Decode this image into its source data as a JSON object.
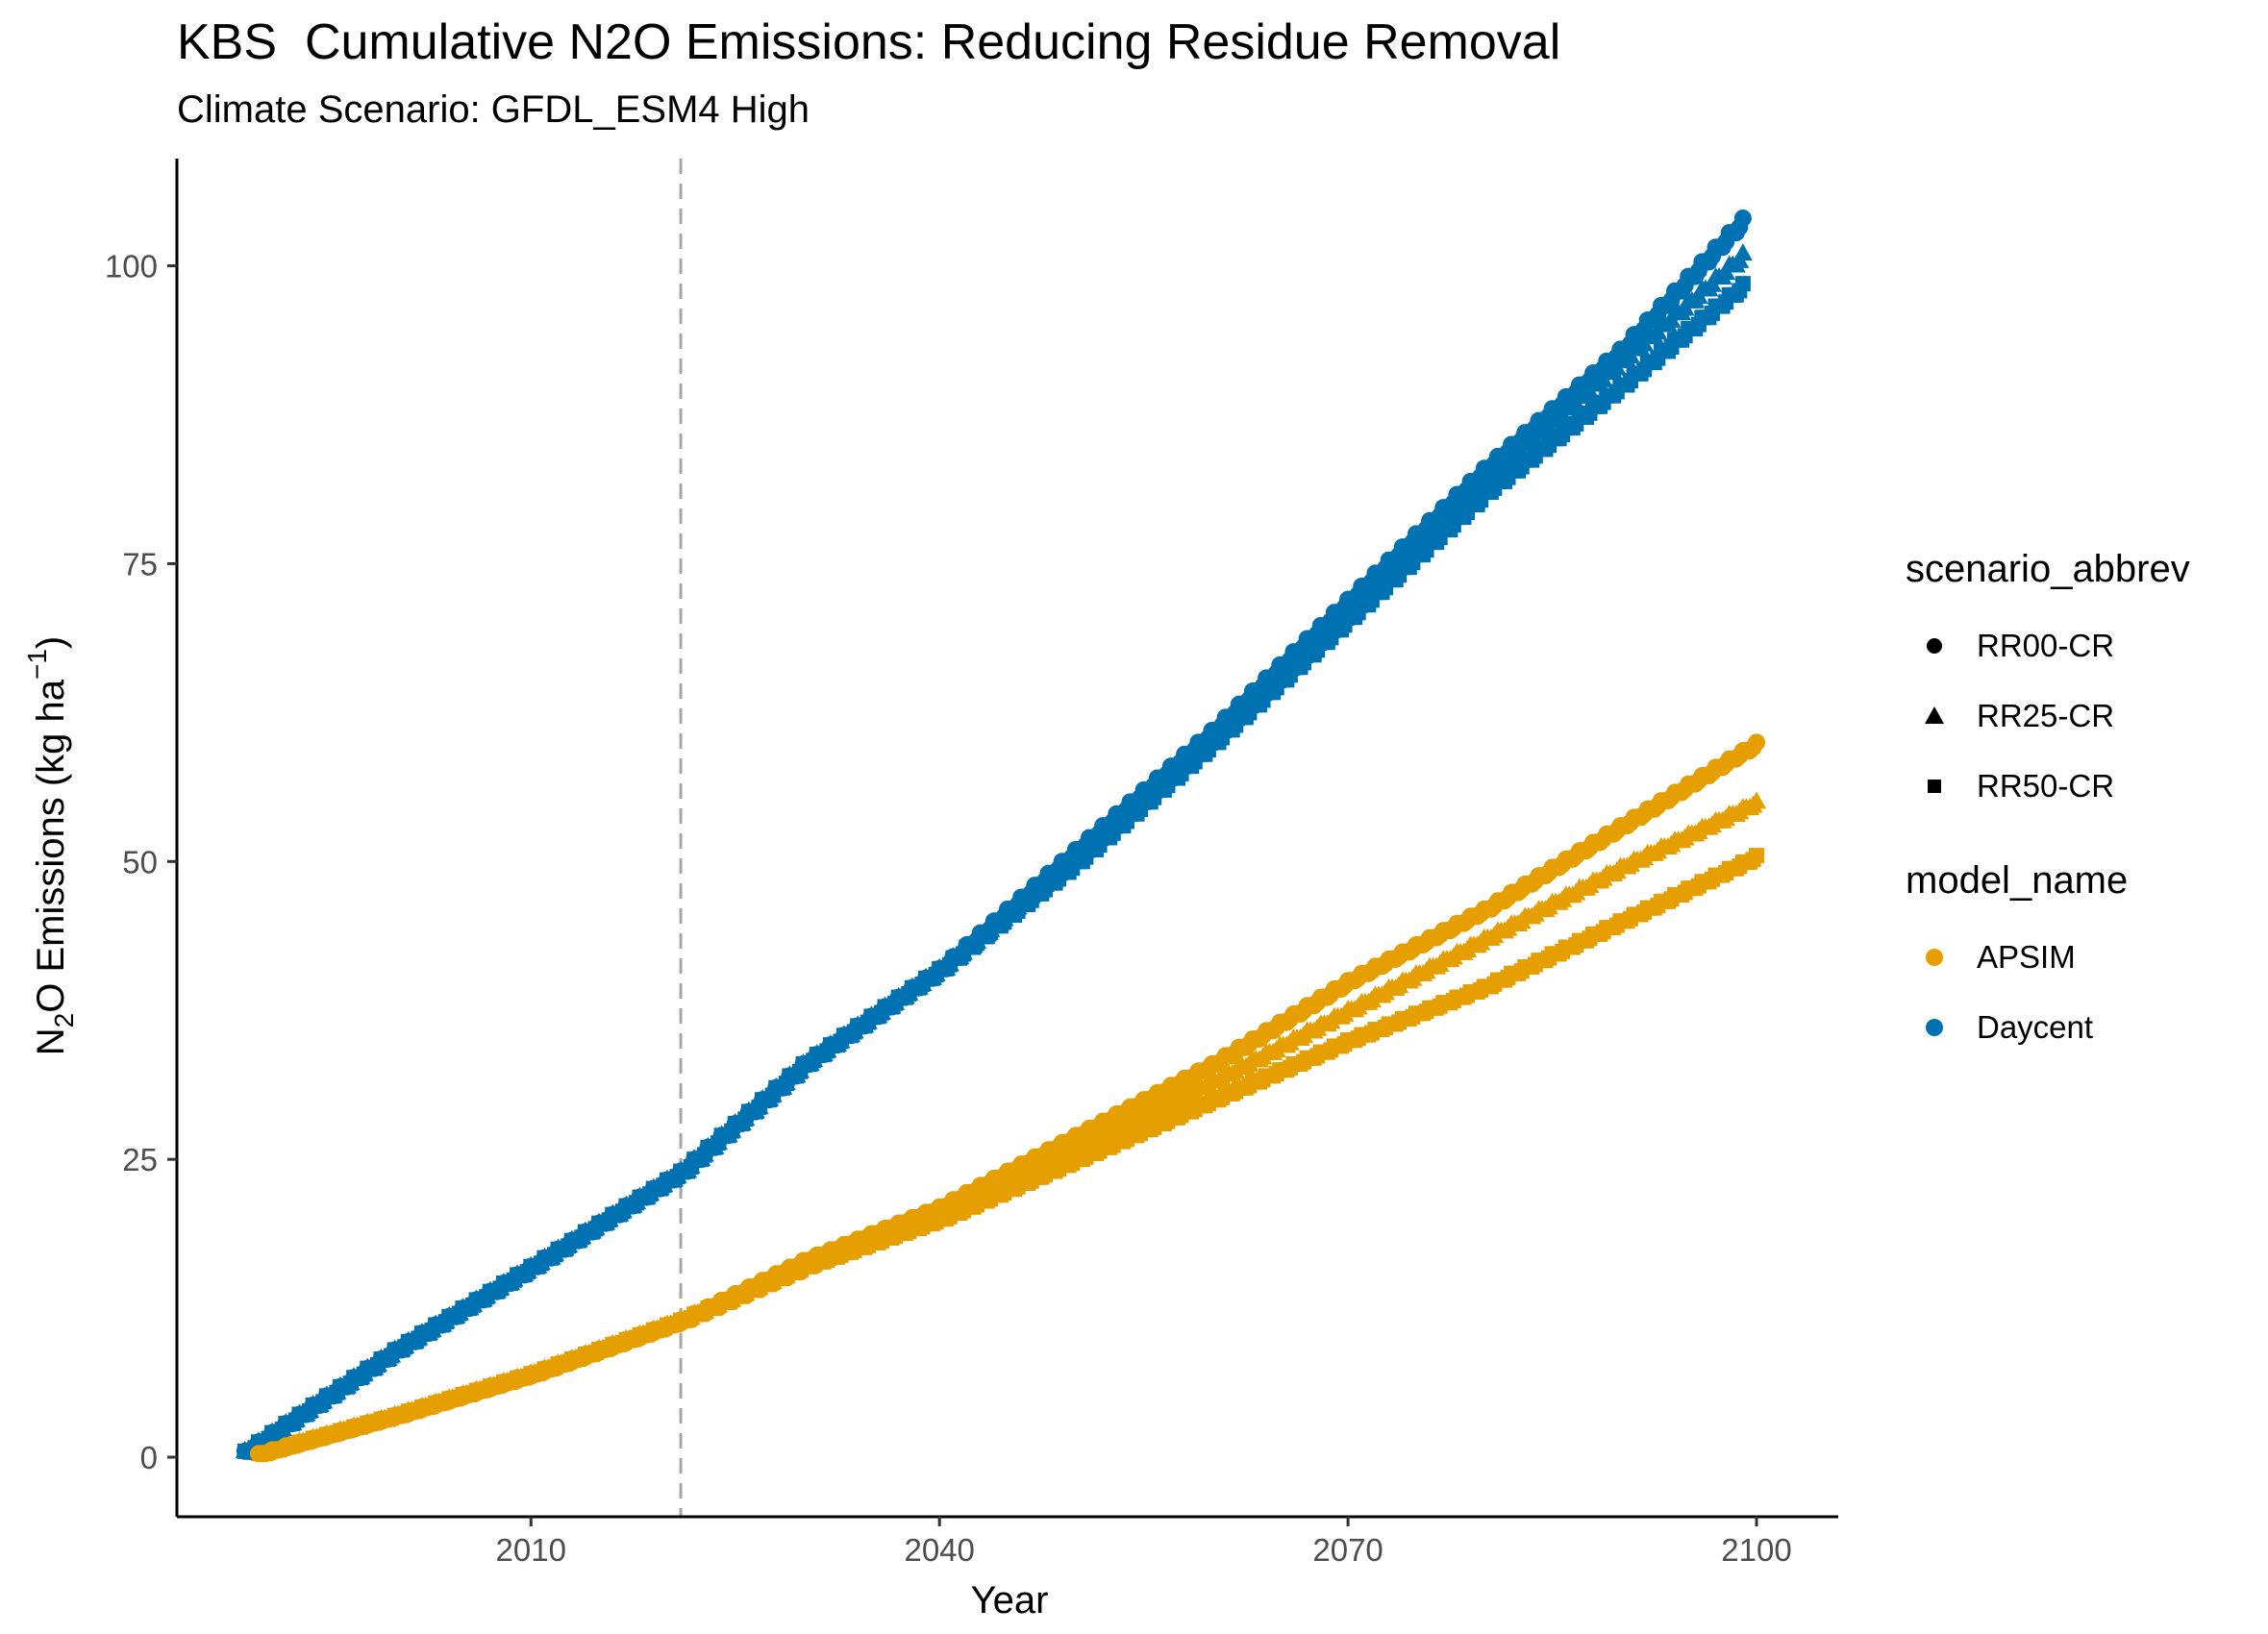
{
  "chart_data": {
    "type": "scatter",
    "title": "KBS  Cumulative N2O Emissions: Reducing Residue Removal",
    "subtitle": "Climate Scenario: GFDL_ESM4 High",
    "xlabel": "Year",
    "ylabel_main": "N",
    "ylabel_sub": "2",
    "ylabel_rest": "O Emissions (kg ha",
    "ylabel_sup": "−1",
    "ylabel_close": ")",
    "xlim": [
      1984,
      2106
    ],
    "ylim": [
      -5,
      109
    ],
    "xticks": [
      2010,
      2040,
      2070,
      2100
    ],
    "yticks": [
      0,
      25,
      50,
      75,
      100
    ],
    "reference_line_x": 2021,
    "grid": false,
    "legend": {
      "position": "right",
      "scenario_title": "scenario_abbrev",
      "scenarios": [
        {
          "label": "RR00-CR",
          "shape": "circle"
        },
        {
          "label": "RR25-CR",
          "shape": "triangle"
        },
        {
          "label": "RR50-CR",
          "shape": "square"
        }
      ],
      "model_title": "model_name",
      "models": [
        {
          "label": "APSIM",
          "color": "#E69F00"
        },
        {
          "label": "Daycent",
          "color": "#0072B2"
        }
      ]
    },
    "series": [
      {
        "model": "Daycent",
        "scenario": "RR00-CR",
        "x": [
          1989,
          2000,
          2010,
          2021,
          2030,
          2040,
          2050,
          2060,
          2070,
          2080,
          2090,
          2099
        ],
        "values": [
          0.5,
          9,
          16,
          24,
          33,
          41,
          51,
          61,
          72,
          83,
          93,
          104
        ]
      },
      {
        "model": "Daycent",
        "scenario": "RR25-CR",
        "x": [
          1989,
          2000,
          2010,
          2021,
          2030,
          2040,
          2050,
          2060,
          2070,
          2080,
          2090,
          2099
        ],
        "values": [
          0.5,
          9,
          16,
          24,
          33,
          41,
          50.5,
          60.5,
          71,
          82,
          92,
          101
        ]
      },
      {
        "model": "Daycent",
        "scenario": "RR50-CR",
        "x": [
          1989,
          2000,
          2010,
          2021,
          2030,
          2040,
          2050,
          2060,
          2070,
          2080,
          2090,
          2099
        ],
        "values": [
          0.5,
          9,
          16,
          24,
          33,
          41,
          50,
          60,
          70.5,
          81,
          90,
          98.5
        ]
      },
      {
        "model": "APSIM",
        "scenario": "RR00-CR",
        "x": [
          1990,
          2000,
          2010,
          2021,
          2030,
          2040,
          2050,
          2060,
          2070,
          2080,
          2090,
          2100
        ],
        "values": [
          0.3,
          3.5,
          7,
          11.5,
          16.5,
          21,
          27,
          33,
          40,
          46,
          53,
          60
        ]
      },
      {
        "model": "APSIM",
        "scenario": "RR25-CR",
        "x": [
          1990,
          2000,
          2010,
          2021,
          2030,
          2040,
          2050,
          2060,
          2070,
          2080,
          2090,
          2100
        ],
        "values": [
          0.3,
          3.5,
          7,
          11.5,
          16,
          20.5,
          26,
          31.5,
          37.5,
          43.5,
          49.5,
          55
        ]
      },
      {
        "model": "APSIM",
        "scenario": "RR50-CR",
        "x": [
          1990,
          2000,
          2010,
          2021,
          2030,
          2040,
          2050,
          2060,
          2070,
          2080,
          2090,
          2100
        ],
        "values": [
          0.3,
          3.5,
          7,
          11.5,
          16,
          20,
          25,
          30,
          35,
          39.5,
          45,
          50.5
        ]
      }
    ]
  }
}
